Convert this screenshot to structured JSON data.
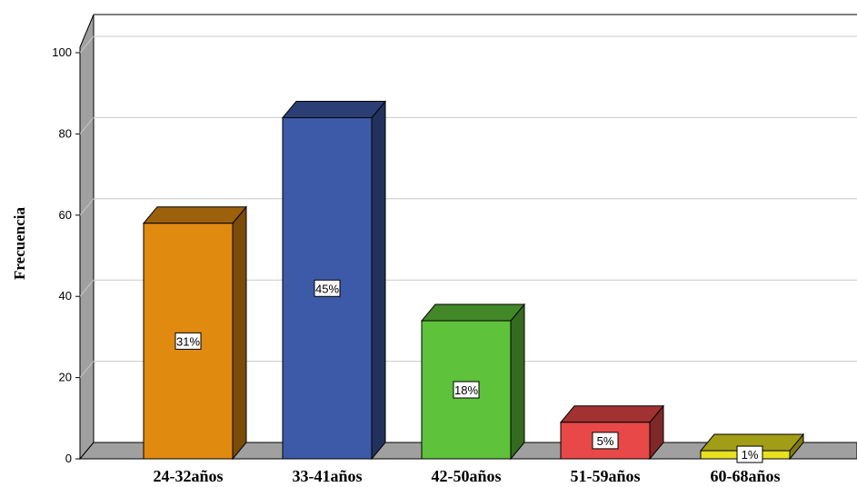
{
  "chart_data": {
    "type": "bar",
    "ylabel": "Frecuencia",
    "xlabel": "",
    "categories": [
      "24-32años",
      "33-41años",
      "42-50años",
      "51-59años",
      "60-68años"
    ],
    "values": [
      58,
      84,
      34,
      9,
      2
    ],
    "data_labels": [
      "31%",
      "45%",
      "18%",
      "5%",
      "1%"
    ],
    "bar_colors": [
      "#e08a10",
      "#3d5aa8",
      "#5ec23a",
      "#e84848",
      "#e8e020"
    ],
    "ylim": [
      0,
      100
    ],
    "yticks": [
      0,
      20,
      40,
      60,
      80,
      100
    ],
    "grid": true,
    "style": "3d"
  }
}
